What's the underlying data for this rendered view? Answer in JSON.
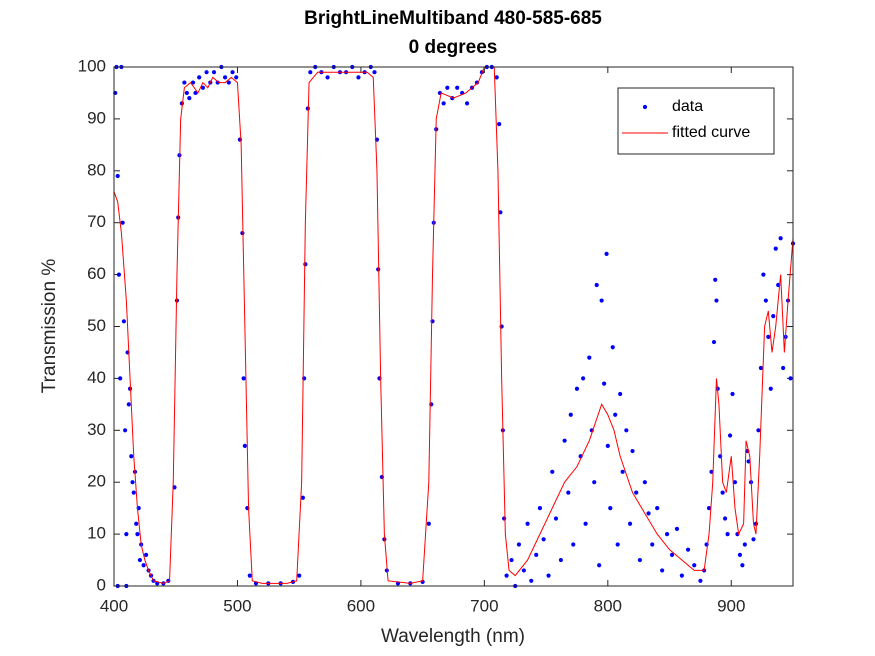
{
  "chart_data": {
    "type": "line",
    "title": "BrightLineMultiband 480-585-685",
    "subtitle": "0 degrees",
    "x_label": "Wavelength (nm)",
    "y_label": "Transmission %",
    "xlim": [
      400,
      950
    ],
    "xticks": [
      400,
      500,
      600,
      700,
      800,
      900
    ],
    "ylim": [
      0,
      100
    ],
    "yticks": [
      0,
      10,
      20,
      30,
      40,
      50,
      60,
      70,
      80,
      90,
      100
    ],
    "grid": false,
    "legend": "northeast",
    "series": [
      {
        "name": "data",
        "color": "#0000ff",
        "style": "markers",
        "x": [
          401,
          402,
          403,
          403,
          404,
          405,
          406,
          407,
          408,
          409,
          410,
          410,
          411,
          412,
          413,
          414,
          415,
          416,
          417,
          418,
          419,
          420,
          421,
          422,
          424,
          426,
          428,
          430,
          432,
          435,
          440,
          444,
          449,
          451,
          452,
          453,
          455,
          457,
          459,
          461,
          464,
          466,
          469,
          472,
          475,
          478,
          481,
          484,
          487,
          490,
          493,
          496,
          499,
          502,
          504,
          505,
          506,
          508,
          510,
          515,
          525,
          535,
          545,
          550,
          553,
          554,
          555,
          557,
          559,
          563,
          568,
          573,
          578,
          583,
          588,
          593,
          598,
          603,
          608,
          611,
          613,
          614,
          615,
          617,
          619,
          621,
          630,
          640,
          650,
          655,
          657,
          658,
          659,
          661,
          664,
          667,
          670,
          674,
          678,
          682,
          686,
          690,
          694,
          698,
          702,
          706,
          710,
          712,
          713,
          714,
          715,
          716,
          718,
          722,
          725,
          728,
          732,
          735,
          738,
          742,
          745,
          748,
          752,
          755,
          758,
          762,
          765,
          768,
          770,
          772,
          775,
          778,
          780,
          782,
          785,
          787,
          789,
          791,
          793,
          795,
          797,
          799,
          800,
          802,
          804,
          806,
          808,
          810,
          812,
          815,
          818,
          820,
          823,
          826,
          830,
          833,
          836,
          840,
          844,
          848,
          852,
          856,
          860,
          865,
          870,
          875,
          878,
          880,
          882,
          884,
          886,
          887,
          888,
          889,
          891,
          893,
          895,
          897,
          899,
          901,
          903,
          905,
          907,
          909,
          911,
          913,
          914,
          916,
          918,
          920,
          922,
          924,
          926,
          928,
          930,
          932,
          934,
          936,
          938,
          940,
          942,
          944,
          946,
          948,
          950
        ],
        "values": [
          95,
          100,
          79,
          0,
          60,
          40,
          100,
          70,
          51,
          30,
          10,
          0,
          45,
          35,
          38,
          25,
          20,
          18,
          22,
          12,
          10,
          15,
          5,
          8,
          4,
          6,
          3,
          2,
          1,
          0.5,
          0.5,
          1,
          19,
          55,
          71,
          83,
          93,
          97,
          95,
          94,
          97,
          95,
          98,
          96,
          99,
          97,
          99,
          97,
          100,
          98,
          97,
          99,
          98,
          86,
          68,
          40,
          27,
          15,
          2,
          0.5,
          0.5,
          0.5,
          0.8,
          2,
          17,
          40,
          62,
          92,
          99,
          100,
          99,
          98,
          100,
          99,
          99,
          100,
          98,
          99,
          100,
          99,
          86,
          61,
          40,
          21,
          9,
          3,
          0.5,
          0.5,
          0.8,
          12,
          35,
          51,
          70,
          88,
          95,
          93,
          96,
          94,
          96,
          95,
          93,
          96,
          97,
          99,
          100,
          100,
          98,
          89,
          72,
          50,
          30,
          13,
          2,
          5,
          0,
          8,
          3,
          12,
          1,
          6,
          15,
          9,
          2,
          22,
          13,
          5,
          28,
          18,
          33,
          8,
          38,
          25,
          40,
          12,
          44,
          30,
          20,
          58,
          4,
          55,
          39,
          64,
          27,
          15,
          46,
          33,
          8,
          37,
          22,
          30,
          12,
          26,
          18,
          5,
          20,
          14,
          8,
          15,
          3,
          10,
          6,
          11,
          2,
          7,
          4,
          1,
          3,
          8,
          15,
          22,
          47,
          59,
          55,
          38,
          25,
          18,
          13,
          10,
          29,
          37,
          20,
          10,
          6,
          4,
          8,
          26,
          24,
          20,
          9,
          12,
          30,
          42,
          60,
          55,
          48,
          38,
          52,
          65,
          58,
          67,
          42,
          48,
          55,
          40,
          66
        ]
      },
      {
        "name": "fitted curve",
        "color": "#ff0000",
        "style": "line",
        "x": [
          400,
          403,
          406,
          410,
          413,
          416,
          419,
          422,
          425,
          428,
          432,
          440,
          445,
          448,
          451,
          454,
          457,
          462,
          468,
          472,
          476,
          480,
          485,
          490,
          495,
          500,
          503,
          506,
          509,
          512,
          520,
          540,
          548,
          552,
          555,
          558,
          565,
          575,
          585,
          595,
          605,
          610,
          613,
          616,
          619,
          622,
          640,
          650,
          655,
          658,
          661,
          665,
          675,
          685,
          695,
          700,
          708,
          711,
          714,
          717,
          720,
          725,
          735,
          745,
          755,
          765,
          775,
          785,
          795,
          800,
          805,
          810,
          820,
          830,
          840,
          850,
          860,
          870,
          878,
          882,
          885,
          888,
          890,
          893,
          896,
          900,
          903,
          906,
          910,
          912,
          915,
          918,
          920,
          923,
          927,
          930,
          933,
          936,
          940,
          943,
          946,
          950
        ],
        "values": [
          76,
          74,
          68,
          55,
          40,
          25,
          15,
          8,
          5,
          3,
          1,
          0.5,
          1,
          20,
          60,
          90,
          96,
          97,
          95,
          97,
          96,
          98,
          97,
          97,
          98,
          97,
          85,
          50,
          15,
          1,
          0.5,
          0.5,
          1,
          20,
          70,
          97,
          99,
          99,
          99,
          99,
          99,
          98,
          80,
          40,
          10,
          1,
          0.5,
          1,
          20,
          60,
          90,
          95,
          94,
          95,
          97,
          100,
          100,
          80,
          40,
          10,
          3,
          2,
          5,
          10,
          15,
          20,
          23,
          28,
          35,
          33,
          30,
          25,
          18,
          14,
          10,
          7,
          5,
          3,
          3,
          10,
          20,
          40,
          35,
          20,
          18,
          25,
          15,
          10,
          12,
          28,
          25,
          12,
          10,
          25,
          50,
          53,
          45,
          50,
          60,
          45,
          55,
          67
        ]
      }
    ]
  }
}
